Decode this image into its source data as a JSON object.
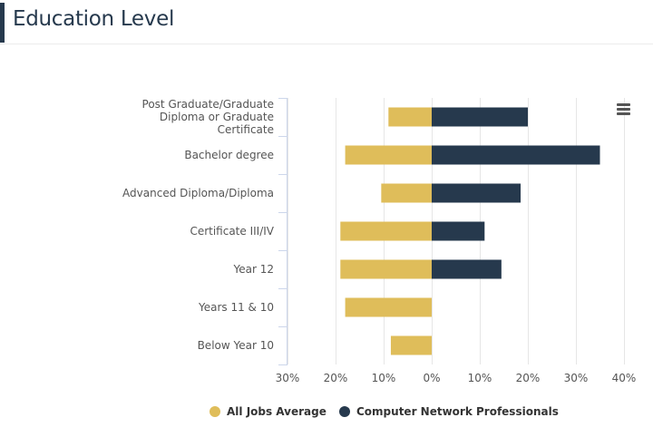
{
  "header": {
    "title": "Education Level"
  },
  "menu": {
    "icon": "hamburger-menu-icon"
  },
  "chart_data": {
    "type": "bar",
    "orientation": "horizontal",
    "diverging": true,
    "categories": [
      "Post Graduate/Graduate Diploma or Graduate Certificate",
      "Bachelor degree",
      "Advanced Diploma/Diploma",
      "Certificate III/IV",
      "Year 12",
      "Years 11 & 10",
      "Below Year 10"
    ],
    "category_label_lines": [
      [
        "Post Graduate/Graduate",
        "Diploma or Graduate",
        "Certificate"
      ],
      [
        "Bachelor degree"
      ],
      [
        "Advanced Diploma/Diploma"
      ],
      [
        "Certificate III/IV"
      ],
      [
        "Year 12"
      ],
      [
        "Years 11 & 10"
      ],
      [
        "Below Year 10"
      ]
    ],
    "series": [
      {
        "name": "All Jobs Average",
        "color": "#dfbd5a",
        "side": "left",
        "values": [
          9,
          18,
          10.5,
          19,
          19,
          18,
          8.5
        ]
      },
      {
        "name": "Computer Network Professionals",
        "color": "#26394d",
        "side": "right",
        "values": [
          20,
          35,
          18.5,
          11,
          14.5,
          0,
          0
        ]
      }
    ],
    "xlim": [
      -30,
      40
    ],
    "x_ticks": [
      -30,
      -20,
      -10,
      0,
      10,
      20,
      30,
      40
    ],
    "x_tick_labels": [
      "30%",
      "20%",
      "10%",
      "0%",
      "10%",
      "20%",
      "30%",
      "40%"
    ],
    "grid": true,
    "legend_position": "bottom-center"
  }
}
